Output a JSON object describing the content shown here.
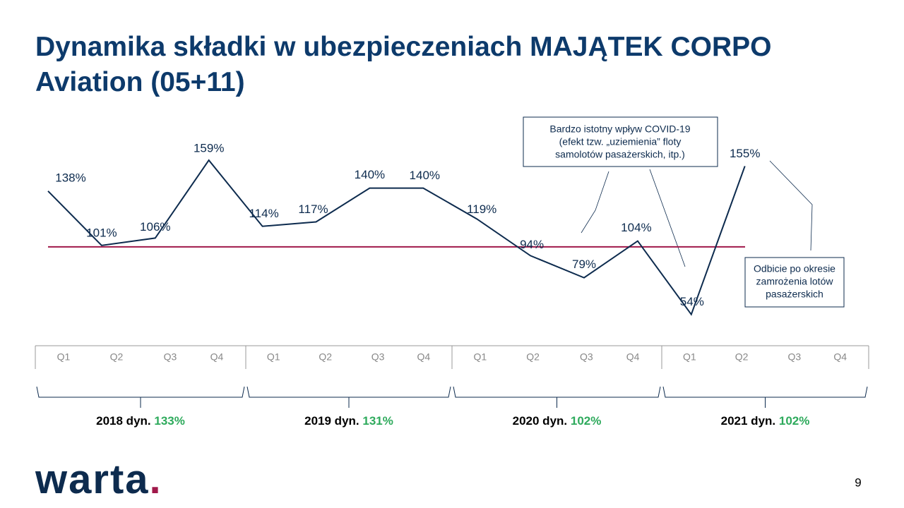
{
  "chart_data": {
    "type": "line",
    "title": "Dynamika składki w ubezpieczeniach MAJĄTEK CORPO Aviation (05+11)",
    "categories": [
      "Q1",
      "Q2",
      "Q3",
      "Q4",
      "Q1",
      "Q2",
      "Q3",
      "Q4",
      "Q1",
      "Q2",
      "Q3",
      "Q4",
      "Q1",
      "Q2",
      "Q3",
      "Q4"
    ],
    "series": [
      {
        "color": "#0d2b4e",
        "values": [
          138,
          101,
          106,
          159,
          114,
          117,
          140,
          140,
          119,
          94,
          79,
          104,
          54,
          155,
          null,
          null
        ],
        "value_labels": [
          "138%",
          "101%",
          "106%",
          "159%",
          "114%",
          "117%",
          "140%",
          "140%",
          "119%",
          "94%",
          "79%",
          "104%",
          "54%",
          "155%",
          null,
          null
        ]
      }
    ],
    "reference_line": {
      "value": 100,
      "color": "#a0184a"
    },
    "ylim": [
      50,
      160
    ],
    "groups": [
      {
        "label": "2018 dyn.",
        "value_label": "133%"
      },
      {
        "label": "2019 dyn.",
        "value_label": "131%"
      },
      {
        "label": "2020 dyn.",
        "value_label": "102%"
      },
      {
        "label": "2021 dyn.",
        "value_label": "102%"
      }
    ],
    "group_value_color": "#2eaa5c",
    "annotations": [
      {
        "lines": [
          "Bardzo istotny wpływ COVID-19",
          "(efekt tzw. „uziemienia” floty",
          "samolotów pasażerskich, itp.)"
        ]
      },
      {
        "lines": [
          "Odbicie po okresie",
          "zamrożenia lotów",
          "pasażerskich"
        ]
      }
    ]
  },
  "footer": {
    "logo": {
      "text": "warta",
      "dot": "."
    },
    "page_number": "9"
  }
}
